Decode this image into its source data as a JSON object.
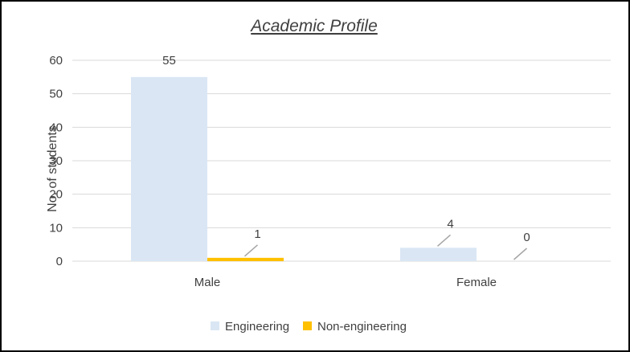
{
  "chart_data": {
    "type": "bar",
    "title": "Academic Profile",
    "ylabel": "No. of students",
    "xlabel": "",
    "categories": [
      "Male",
      "Female"
    ],
    "series": [
      {
        "name": "Engineering",
        "values": [
          55,
          4
        ],
        "color": "#dae6f4"
      },
      {
        "name": "Non-engineering",
        "values": [
          1,
          0
        ],
        "color": "#ffc000"
      }
    ],
    "ylim": [
      0,
      60
    ],
    "yticks": [
      "0",
      "10",
      "20",
      "30",
      "40",
      "50",
      "60"
    ],
    "data_labels": [
      [
        "55",
        "4"
      ],
      [
        "1",
        "0"
      ]
    ],
    "grid": true,
    "legend_position": "bottom"
  }
}
